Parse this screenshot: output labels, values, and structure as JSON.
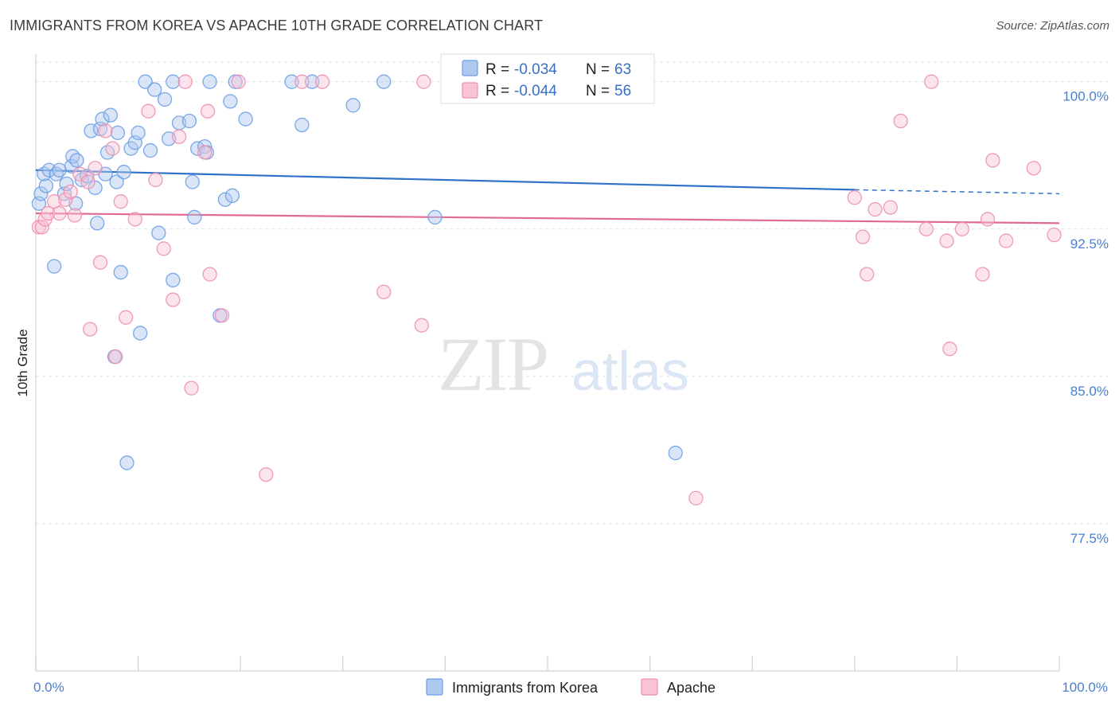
{
  "title": "IMMIGRANTS FROM KOREA VS APACHE 10TH GRADE CORRELATION CHART",
  "source": "Source: ZipAtlas.com",
  "watermark": {
    "zip": "ZIP",
    "atlas": "atlas"
  },
  "colors": {
    "blue": "#6d9ee6",
    "blue_fill": "#aec8f0",
    "blue_line": "#2f72c8",
    "pink": "#ee8fb0",
    "pink_fill": "#f7c3d5",
    "pink_line": "#e06a92",
    "grid": "#dde3ea",
    "tick_text": "#4a7fd0"
  },
  "legend": {
    "rows": [
      {
        "r_label": "R =",
        "r_value": "-0.034",
        "n_label": "N =",
        "n_value": "63"
      },
      {
        "r_label": "R =",
        "r_value": "-0.044",
        "n_label": "N =",
        "n_value": "56"
      }
    ]
  },
  "bottom_legend": [
    "Immigrants from Korea",
    "Apache"
  ],
  "chart_data": {
    "type": "scatter",
    "title": "IMMIGRANTS FROM KOREA VS APACHE 10TH GRADE CORRELATION CHART",
    "xlabel": "",
    "ylabel": "10th Grade",
    "xlim": [
      0,
      100
    ],
    "ylim": [
      70.0,
      101.0
    ],
    "x_tick_labels": [
      "0.0%",
      "100.0%"
    ],
    "y_ticks": [
      {
        "value": 100.0,
        "label": "100.0%"
      },
      {
        "value": 92.5,
        "label": "92.5%"
      },
      {
        "value": 85.0,
        "label": "85.0%"
      },
      {
        "value": 77.5,
        "label": "77.5%"
      }
    ],
    "grid": true,
    "legend_position": "top-center",
    "series": [
      {
        "name": "Immigrants from Korea",
        "r": -0.034,
        "n": 63,
        "trend": {
          "x": [
            0,
            80
          ],
          "y": [
            95.5,
            94.5
          ],
          "dashed_to": [
            100,
            94.3
          ]
        },
        "points": [
          [
            0.3,
            93.8
          ],
          [
            0.5,
            94.3
          ],
          [
            0.8,
            95.3
          ],
          [
            1.0,
            94.7
          ],
          [
            1.3,
            95.5
          ],
          [
            1.8,
            90.6
          ],
          [
            2.0,
            95.3
          ],
          [
            2.3,
            95.5
          ],
          [
            2.8,
            94.3
          ],
          [
            3.0,
            94.8
          ],
          [
            3.5,
            95.7
          ],
          [
            3.6,
            96.2
          ],
          [
            3.9,
            93.8
          ],
          [
            4.0,
            96.0
          ],
          [
            4.5,
            95.0
          ],
          [
            5.0,
            95.2
          ],
          [
            5.4,
            97.5
          ],
          [
            5.8,
            94.6
          ],
          [
            6.0,
            92.8
          ],
          [
            6.3,
            97.6
          ],
          [
            6.5,
            98.1
          ],
          [
            6.8,
            95.3
          ],
          [
            7.0,
            96.4
          ],
          [
            7.3,
            98.3
          ],
          [
            7.7,
            86.0
          ],
          [
            7.9,
            94.9
          ],
          [
            8.0,
            97.4
          ],
          [
            8.3,
            90.3
          ],
          [
            8.6,
            95.4
          ],
          [
            8.9,
            80.6
          ],
          [
            9.3,
            96.6
          ],
          [
            9.7,
            96.9
          ],
          [
            10.0,
            97.4
          ],
          [
            10.2,
            87.2
          ],
          [
            10.7,
            100.0
          ],
          [
            11.2,
            96.5
          ],
          [
            11.6,
            99.6
          ],
          [
            12.0,
            92.3
          ],
          [
            12.6,
            99.1
          ],
          [
            13.0,
            97.1
          ],
          [
            13.4,
            89.9
          ],
          [
            13.4,
            100.0
          ],
          [
            14.0,
            97.9
          ],
          [
            15.0,
            98.0
          ],
          [
            15.3,
            94.9
          ],
          [
            15.5,
            93.1
          ],
          [
            15.8,
            96.6
          ],
          [
            16.5,
            96.7
          ],
          [
            16.7,
            96.4
          ],
          [
            17.0,
            100.0
          ],
          [
            18.0,
            88.1
          ],
          [
            18.5,
            94.0
          ],
          [
            19.0,
            99.0
          ],
          [
            19.2,
            94.2
          ],
          [
            19.5,
            100.0
          ],
          [
            20.5,
            98.1
          ],
          [
            25.0,
            100.0
          ],
          [
            26.0,
            97.8
          ],
          [
            27.0,
            100.0
          ],
          [
            31.0,
            98.8
          ],
          [
            34.0,
            100.0
          ],
          [
            39.0,
            93.1
          ],
          [
            62.5,
            81.1
          ]
        ]
      },
      {
        "name": "Apache",
        "r": -0.044,
        "n": 56,
        "trend": {
          "x": [
            0,
            100
          ],
          "y": [
            93.3,
            92.8
          ]
        },
        "points": [
          [
            0.3,
            92.6
          ],
          [
            0.6,
            92.6
          ],
          [
            0.9,
            93.0
          ],
          [
            1.2,
            93.3
          ],
          [
            1.8,
            93.9
          ],
          [
            2.3,
            93.3
          ],
          [
            2.9,
            94.0
          ],
          [
            3.4,
            94.4
          ],
          [
            3.8,
            93.2
          ],
          [
            4.3,
            95.3
          ],
          [
            5.1,
            94.9
          ],
          [
            5.3,
            87.4
          ],
          [
            5.8,
            95.6
          ],
          [
            6.3,
            90.8
          ],
          [
            6.8,
            97.5
          ],
          [
            7.5,
            96.6
          ],
          [
            7.8,
            86.0
          ],
          [
            8.3,
            93.9
          ],
          [
            8.8,
            88.0
          ],
          [
            9.7,
            93.0
          ],
          [
            11.0,
            98.5
          ],
          [
            11.7,
            95.0
          ],
          [
            12.5,
            91.5
          ],
          [
            13.4,
            88.9
          ],
          [
            14.0,
            97.2
          ],
          [
            14.6,
            100.0
          ],
          [
            15.2,
            84.4
          ],
          [
            16.5,
            96.4
          ],
          [
            16.8,
            98.5
          ],
          [
            17.0,
            90.2
          ],
          [
            18.2,
            88.1
          ],
          [
            19.8,
            100.0
          ],
          [
            22.5,
            80.0
          ],
          [
            26.0,
            100.0
          ],
          [
            28.0,
            100.0
          ],
          [
            34.0,
            89.3
          ],
          [
            37.7,
            87.6
          ],
          [
            37.9,
            100.0
          ],
          [
            64.5,
            78.8
          ],
          [
            80.0,
            94.1
          ],
          [
            80.8,
            92.1
          ],
          [
            81.2,
            90.2
          ],
          [
            82.0,
            93.5
          ],
          [
            83.5,
            93.6
          ],
          [
            84.5,
            98.0
          ],
          [
            87.0,
            92.5
          ],
          [
            87.5,
            100.0
          ],
          [
            89.0,
            91.9
          ],
          [
            89.3,
            86.4
          ],
          [
            90.5,
            92.5
          ],
          [
            92.5,
            90.2
          ],
          [
            93.0,
            93.0
          ],
          [
            93.5,
            96.0
          ],
          [
            94.8,
            91.9
          ],
          [
            97.5,
            95.6
          ],
          [
            99.5,
            92.2
          ]
        ]
      }
    ]
  }
}
